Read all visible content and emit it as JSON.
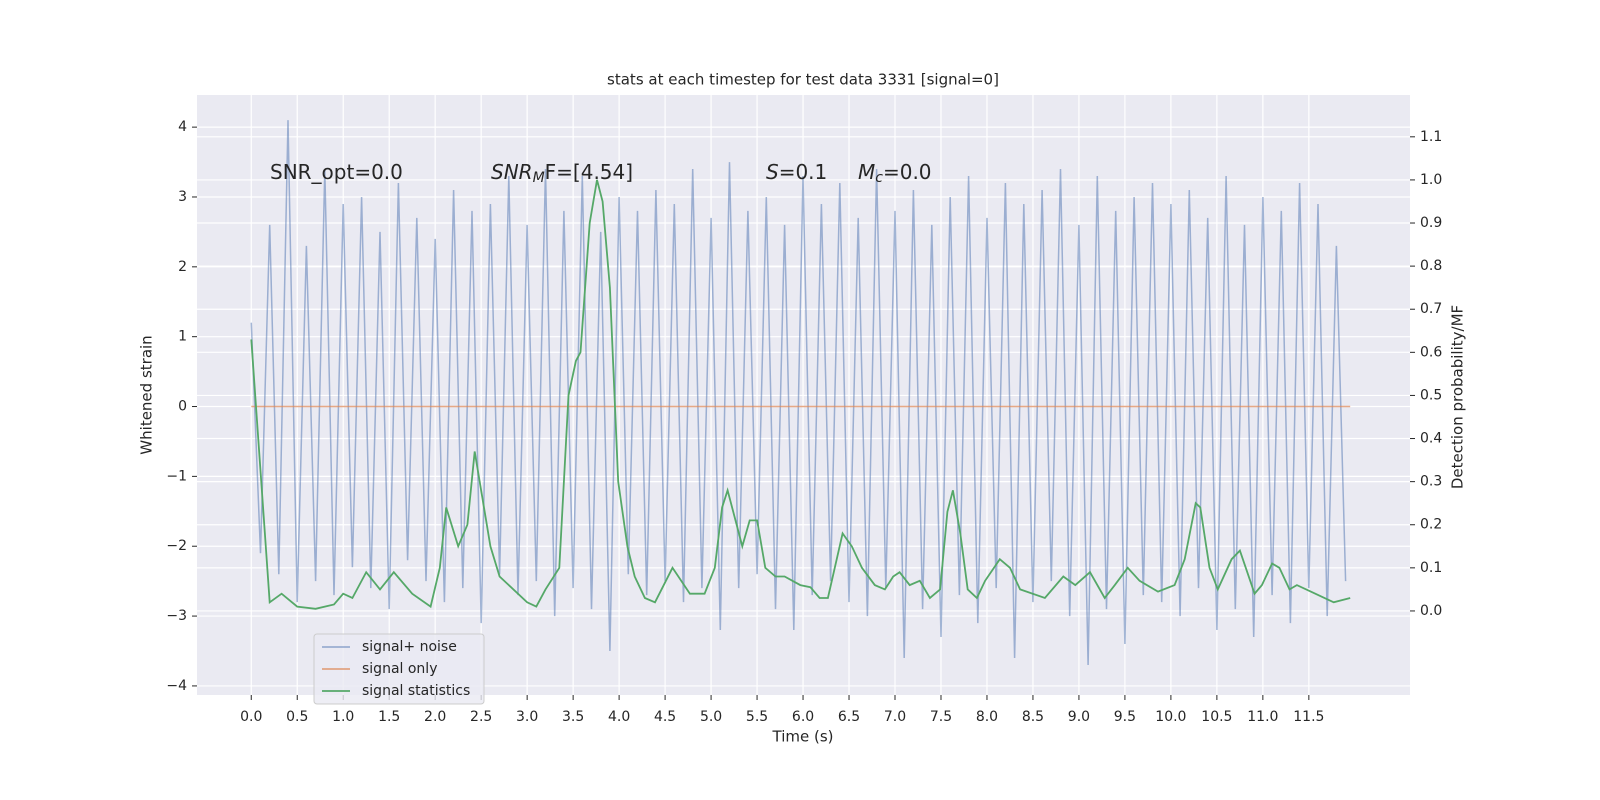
{
  "chart_data": {
    "type": "line",
    "title": "stats at each timestep for test data 3331 [signal=0]",
    "xlabel": "Time (s)",
    "ylabel": "Whitened strain",
    "y2label": "Detection probability/MF",
    "annotations": [
      [
        "SNR_opt=0.0"
      ],
      [
        "SNR",
        "M",
        "F=[4.54]"
      ],
      [
        "S",
        "=0.1"
      ],
      [
        "M",
        "c",
        "=0.0"
      ]
    ],
    "xlim": [
      -0.59,
      12.6
    ],
    "ylim": [
      -4.13,
      4.46
    ],
    "y2lim": [
      -0.195,
      1.197
    ],
    "xticks": [
      {
        "value": 0,
        "label": "0.0"
      },
      0.5,
      {
        "value": 1,
        "label": "1.0"
      },
      1.5,
      {
        "value": 2,
        "label": "2.0"
      },
      2.5,
      {
        "value": 3,
        "label": "3.0"
      },
      3.5,
      {
        "value": 4,
        "label": "4.0"
      },
      4.5,
      {
        "value": 5,
        "label": "5.0"
      },
      5.5,
      {
        "value": 6,
        "label": "6.0"
      },
      6.5,
      {
        "value": 7,
        "label": "7.0"
      },
      7.5,
      {
        "value": 8,
        "label": "8.0"
      },
      8.5,
      {
        "value": 9,
        "label": "9.0"
      },
      9.5,
      {
        "value": 10,
        "label": "10.0"
      },
      10.5,
      {
        "value": 11,
        "label": "11.0"
      },
      11.5
    ],
    "yticks": [
      {
        "value": -4,
        "label": "−4"
      },
      {
        "value": -3,
        "label": "−3"
      },
      {
        "value": -2,
        "label": "−2"
      },
      {
        "value": -1,
        "label": "−1"
      },
      0,
      1,
      2,
      3,
      4
    ],
    "y2ticks": [
      {
        "value": 0,
        "label": "0.0"
      },
      0.1,
      0.2,
      0.3,
      0.4,
      0.5,
      0.6,
      0.7,
      0.8,
      0.9,
      {
        "value": 1,
        "label": "1.0"
      },
      1.1
    ],
    "grid": true,
    "legend": "lower left",
    "series": [
      {
        "name": "signal+ noise",
        "color": "#4c72b0",
        "x": [
          0.0,
          0.1,
          0.2,
          0.3,
          0.4,
          0.5,
          0.6,
          0.7,
          0.8,
          0.9,
          1.0,
          1.1,
          1.2,
          1.3,
          1.4,
          1.5,
          1.6,
          1.7,
          1.8,
          1.9,
          2.0,
          2.1,
          2.2,
          2.3,
          2.4,
          2.5,
          2.6,
          2.7,
          2.8,
          2.9,
          3.0,
          3.1,
          3.2,
          3.3,
          3.4,
          3.5,
          3.6,
          3.7,
          3.8,
          3.9,
          4.0,
          4.1,
          4.2,
          4.3,
          4.4,
          4.5,
          4.6,
          4.7,
          4.8,
          4.9,
          5.0,
          5.1,
          5.2,
          5.3,
          5.4,
          5.5,
          5.6,
          5.7,
          5.8,
          5.9,
          6.0,
          6.1,
          6.2,
          6.3,
          6.4,
          6.5,
          6.6,
          6.7,
          6.8,
          6.9,
          7.0,
          7.1,
          7.2,
          7.3,
          7.4,
          7.5,
          7.6,
          7.7,
          7.8,
          7.9,
          8.0,
          8.1,
          8.2,
          8.3,
          8.4,
          8.5,
          8.6,
          8.7,
          8.8,
          8.9,
          9.0,
          9.1,
          9.2,
          9.3,
          9.4,
          9.5,
          9.6,
          9.7,
          9.8,
          9.9,
          10.0,
          10.1,
          10.2,
          10.3,
          10.4,
          10.5,
          10.6,
          10.7,
          10.8,
          10.9,
          11.0,
          11.1,
          11.2,
          11.3,
          11.4,
          11.5,
          11.6,
          11.7,
          11.8,
          11.9
        ],
        "values": [
          1.2,
          -2.1,
          2.6,
          -2.4,
          4.1,
          -2.8,
          2.3,
          -2.5,
          3.4,
          -2.7,
          2.9,
          -2.3,
          3.0,
          -2.6,
          2.5,
          -2.9,
          3.2,
          -2.2,
          2.7,
          -2.5,
          2.4,
          -2.8,
          3.1,
          -2.6,
          2.8,
          -3.1,
          2.9,
          -2.4,
          3.3,
          -2.7,
          2.6,
          -2.5,
          3.4,
          -3.0,
          2.8,
          -2.6,
          3.3,
          -2.9,
          2.5,
          -3.5,
          3.0,
          -2.4,
          2.8,
          -2.7,
          3.1,
          -2.5,
          2.9,
          -2.8,
          3.4,
          -2.6,
          2.7,
          -3.2,
          3.5,
          -2.6,
          2.8,
          -2.4,
          3.0,
          -2.9,
          2.6,
          -3.2,
          3.3,
          -2.7,
          2.9,
          -2.5,
          3.2,
          -2.8,
          2.7,
          -3.0,
          3.4,
          -2.6,
          2.8,
          -3.6,
          3.1,
          -2.9,
          2.6,
          -3.3,
          3.0,
          -2.7,
          3.3,
          -3.1,
          2.7,
          -2.6,
          3.2,
          -3.6,
          2.9,
          -2.8,
          3.1,
          -2.5,
          3.4,
          -3.0,
          2.6,
          -3.7,
          3.3,
          -2.9,
          2.8,
          -3.4,
          3.0,
          -2.7,
          3.2,
          -2.8,
          2.9,
          -3.0,
          3.1,
          -2.6,
          2.7,
          -3.2,
          3.3,
          -2.9,
          2.6,
          -3.3,
          3.0,
          -2.7,
          2.8,
          -3.1,
          3.2,
          -2.6,
          2.9,
          -3.0,
          2.3,
          -2.5
        ]
      },
      {
        "name": "signal only",
        "color": "#dd8452",
        "x": [
          0,
          11.95
        ],
        "values": [
          0,
          0
        ]
      },
      {
        "name": "signal statistics",
        "color": "#55a868",
        "axis": "y2",
        "x": [
          0,
          0.2,
          0.33,
          0.5,
          0.7,
          0.9,
          1.0,
          1.1,
          1.25,
          1.4,
          1.55,
          1.75,
          1.95,
          2.05,
          2.12,
          2.25,
          2.35,
          2.43,
          2.6,
          2.7,
          3.0,
          3.1,
          3.2,
          3.35,
          3.45,
          3.53,
          3.58,
          3.68,
          3.76,
          3.82,
          3.9,
          3.99,
          4.09,
          4.17,
          4.28,
          4.39,
          4.58,
          4.77,
          4.93,
          5.04,
          5.12,
          5.18,
          5.34,
          5.42,
          5.5,
          5.59,
          5.7,
          5.8,
          5.97,
          6.08,
          6.18,
          6.27,
          6.43,
          6.53,
          6.64,
          6.78,
          6.89,
          6.98,
          7.05,
          7.16,
          7.27,
          7.38,
          7.49,
          7.57,
          7.63,
          7.71,
          7.79,
          7.89,
          7.98,
          8.14,
          8.25,
          8.36,
          8.63,
          8.83,
          8.96,
          9.12,
          9.28,
          9.39,
          9.53,
          9.66,
          9.86,
          10.04,
          10.15,
          10.27,
          10.32,
          10.42,
          10.51,
          10.66,
          10.75,
          10.91,
          10.99,
          11.1,
          11.18,
          11.29,
          11.37,
          11.57,
          11.77,
          11.95
        ],
        "values": [
          0.63,
          0.02,
          0.04,
          0.01,
          0.005,
          0.015,
          0.04,
          0.03,
          0.09,
          0.05,
          0.09,
          0.04,
          0.01,
          0.1,
          0.24,
          0.15,
          0.2,
          0.37,
          0.15,
          0.08,
          0.02,
          0.01,
          0.05,
          0.1,
          0.5,
          0.58,
          0.6,
          0.9,
          1.0,
          0.95,
          0.75,
          0.3,
          0.15,
          0.08,
          0.03,
          0.02,
          0.1,
          0.04,
          0.04,
          0.1,
          0.24,
          0.28,
          0.15,
          0.21,
          0.21,
          0.1,
          0.08,
          0.08,
          0.06,
          0.055,
          0.03,
          0.03,
          0.18,
          0.15,
          0.1,
          0.06,
          0.05,
          0.08,
          0.09,
          0.06,
          0.07,
          0.03,
          0.05,
          0.23,
          0.28,
          0.18,
          0.05,
          0.03,
          0.07,
          0.12,
          0.1,
          0.05,
          0.03,
          0.08,
          0.06,
          0.09,
          0.03,
          0.06,
          0.1,
          0.07,
          0.045,
          0.06,
          0.12,
          0.25,
          0.24,
          0.1,
          0.05,
          0.12,
          0.14,
          0.04,
          0.06,
          0.11,
          0.1,
          0.05,
          0.06,
          0.04,
          0.02,
          0.03
        ]
      }
    ]
  }
}
